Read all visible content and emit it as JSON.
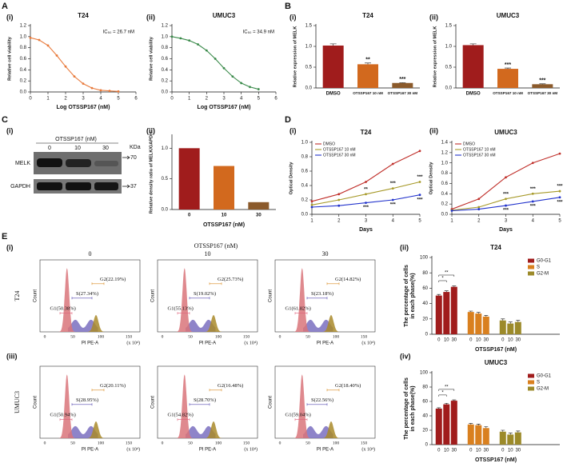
{
  "panel_labels": [
    "A",
    "B",
    "C",
    "D",
    "E"
  ],
  "sub_labels": [
    "(i)",
    "(ii)",
    "(iii)",
    "(iv)"
  ],
  "western_blot": {
    "treatment": "OTSSP167 (nM)",
    "lanes": [
      "0",
      "10",
      "30"
    ],
    "kda": "KDa",
    "proteins": [
      "MELK",
      "GAPDH"
    ],
    "markers": [
      "70",
      "37"
    ]
  },
  "flow_cytometry": {
    "title": "OTSSP167 (nM)",
    "columns": [
      "0",
      "10",
      "30"
    ],
    "x_label": "PI PE-A",
    "x_unit": "(x 10⁴)",
    "y_label": "Count",
    "x_ticks": [
      "0",
      "50",
      "100",
      "150"
    ],
    "rows": [
      {
        "label": "T24",
        "panels": [
          {
            "G1": "G1(50.38%)",
            "S": "S(27.34%)",
            "G2": "G2(22.19%)"
          },
          {
            "G1": "G1(55.13%)",
            "S": "S(19.02%)",
            "G2": "G2(25.73%)"
          },
          {
            "G1": "G1(61.82%)",
            "S": "S(23.18%)",
            "G2": "G2(14.82%)"
          }
        ]
      },
      {
        "label": "UMUC3",
        "panels": [
          {
            "G1": "G1(50.94%)",
            "S": "S(28.95%)",
            "G2": "G2(20.11%)"
          },
          {
            "G1": "G1(54.82%)",
            "S": "S(28.70%)",
            "G2": "G2(16.48%)"
          },
          {
            "G1": "G1(59.04%)",
            "S": "S(22.56%)",
            "G2": "G2(18.40%)"
          }
        ]
      }
    ]
  },
  "chart_data": [
    {
      "type": "line",
      "title": "T24",
      "annotation": "IC₅₀ = 26.7 nM",
      "x": [
        0,
        0.5,
        1,
        1.5,
        2,
        2.5,
        3,
        3.5,
        4,
        4.5,
        5
      ],
      "series": [
        {
          "color": "#e8793a",
          "values": [
            0.98,
            0.94,
            0.84,
            0.66,
            0.46,
            0.28,
            0.15,
            0.07,
            0.03,
            0.02,
            0.01
          ]
        }
      ],
      "x_label": "Log OTSSP167 (nM)",
      "y_label": "Relative cell viability",
      "xlim": [
        0,
        6
      ],
      "xticks": [
        0,
        1,
        2,
        3,
        4,
        5,
        6
      ],
      "ylim": [
        0,
        1.2
      ],
      "yticks": [
        {
          "value": 0,
          "label": "0.0"
        },
        0.2,
        0.4,
        0.6,
        0.8,
        {
          "value": 1,
          "label": "1.0"
        },
        1.2
      ]
    },
    {
      "type": "line",
      "title": "UMUC3",
      "annotation": "IC₅₀ = 34.9 nM",
      "x": [
        0,
        0.5,
        1,
        1.5,
        2,
        2.5,
        3,
        3.5,
        4,
        4.5,
        5
      ],
      "series": [
        {
          "color": "#3a8a4a",
          "values": [
            1.0,
            0.97,
            0.93,
            0.86,
            0.75,
            0.6,
            0.43,
            0.28,
            0.16,
            0.09,
            0.05
          ]
        }
      ],
      "x_label": "Log OTSSP167 (nM)",
      "y_label": "Relative cell viability",
      "xlim": [
        0,
        6
      ],
      "xticks": [
        0,
        1,
        2,
        3,
        4,
        5,
        6
      ],
      "ylim": [
        0,
        1.2
      ],
      "yticks": [
        {
          "value": 0,
          "label": "0.0"
        },
        0.2,
        0.4,
        0.6,
        0.8,
        {
          "value": 1,
          "label": "1.0"
        },
        1.2
      ]
    },
    {
      "type": "bar",
      "title": "T24",
      "categories": [
        "DMSO",
        "OTSSP167 10 nM",
        "OTSSP167 30 nM"
      ],
      "values": [
        1.02,
        0.57,
        0.12
      ],
      "errors": [
        0.04,
        0.03,
        0.01
      ],
      "colors": [
        "#a01c1c",
        "#d2691e",
        "#8b5a2b"
      ],
      "significance": [
        null,
        "**",
        "***"
      ],
      "y_label": "Relative expression of MELK",
      "ylim": [
        0,
        1.5
      ],
      "yticks": [
        {
          "value": 0,
          "label": "0.0"
        },
        0.5,
        {
          "value": 1,
          "label": "1.0"
        },
        1.5
      ]
    },
    {
      "type": "bar",
      "title": "UMUC3",
      "categories": [
        "DMSO",
        "OTSSP167 10 nM",
        "OTSSP167 30 nM"
      ],
      "values": [
        1.03,
        0.46,
        0.09
      ],
      "errors": [
        0.03,
        0.02,
        0.01
      ],
      "colors": [
        "#a01c1c",
        "#d2691e",
        "#8b5a2b"
      ],
      "significance": [
        null,
        "***",
        "***"
      ],
      "y_label": "Relative expression of MELK",
      "ylim": [
        0,
        1.5
      ],
      "yticks": [
        {
          "value": 0,
          "label": "0.0"
        },
        0.5,
        {
          "value": 1,
          "label": "1.0"
        },
        1.5
      ]
    },
    {
      "type": "bar",
      "categories": [
        "0",
        "10",
        "30"
      ],
      "values": [
        1.0,
        0.71,
        0.12
      ],
      "colors": [
        "#a01c1c",
        "#d2691e",
        "#8b5a2b"
      ],
      "x_label": "OTSSP167 (nM)",
      "y_label": "Relative density ratio of MELK/GAPDH",
      "ylim": [
        0,
        1.2
      ],
      "yticks": [
        {
          "value": 0,
          "label": "0.0"
        },
        0.5,
        {
          "value": 1,
          "label": "1.0"
        }
      ]
    },
    {
      "type": "line",
      "title": "T24",
      "x": [
        1,
        2,
        3,
        4,
        5
      ],
      "series": [
        {
          "name": "DMSO",
          "color": "#c0302b",
          "values": [
            0.18,
            0.28,
            0.45,
            0.7,
            0.88
          ]
        },
        {
          "name": "OTSSP167 10 nM",
          "color": "#a79a2a",
          "values": [
            0.13,
            0.2,
            0.28,
            0.36,
            0.45
          ],
          "significance": [
            null,
            null,
            "**",
            "***",
            "***"
          ]
        },
        {
          "name": "OTSSP167 30 nM",
          "color": "#2233cc",
          "values": [
            0.1,
            0.12,
            0.16,
            0.2,
            0.27
          ],
          "significance": [
            null,
            null,
            "***",
            "***",
            "***"
          ]
        }
      ],
      "x_label": "Days",
      "y_label": "Optical Density",
      "xlim": [
        1,
        5
      ],
      "xticks": [
        1,
        2,
        3,
        4,
        5
      ],
      "ylim": [
        0,
        1
      ],
      "yticks": [
        {
          "value": 0,
          "label": "0.0"
        },
        0.2,
        0.4,
        0.6,
        0.8,
        {
          "value": 1,
          "label": "1.0"
        }
      ]
    },
    {
      "type": "line",
      "title": "UMUC3",
      "x": [
        1,
        2,
        3,
        4,
        5
      ],
      "series": [
        {
          "name": "DMSO",
          "color": "#c0302b",
          "values": [
            0.1,
            0.3,
            0.72,
            1.0,
            1.18
          ]
        },
        {
          "name": "OTSSP167 10 nM",
          "color": "#a79a2a",
          "values": [
            0.08,
            0.14,
            0.3,
            0.4,
            0.45
          ],
          "significance": [
            null,
            null,
            "***",
            "***",
            "***"
          ]
        },
        {
          "name": "OTSSP167 30 nM",
          "color": "#2233cc",
          "values": [
            0.07,
            0.1,
            0.17,
            0.25,
            0.33
          ],
          "significance": [
            null,
            null,
            "***",
            "***",
            "***"
          ]
        }
      ],
      "x_label": "Days",
      "y_label": "Optical Density",
      "xlim": [
        1,
        5
      ],
      "xticks": [
        1,
        2,
        3,
        4,
        5
      ],
      "ylim": [
        0,
        1.4
      ],
      "yticks": [
        {
          "value": 0,
          "label": "0.0"
        },
        0.2,
        0.4,
        0.6,
        0.8,
        {
          "value": 1,
          "label": "1.0"
        },
        1.2,
        1.4
      ]
    },
    {
      "type": "grouped_bar",
      "title": "T24",
      "categories": [
        "0",
        "10",
        "30"
      ],
      "series": [
        {
          "name": "G0-G1",
          "color": "#a01c1c",
          "values": [
            50.4,
            55.1,
            61.8
          ],
          "errors": [
            1.5,
            1.5,
            1.2
          ],
          "significance": [
            null,
            "*",
            "**"
          ]
        },
        {
          "name": "S",
          "color": "#d9801f",
          "values": [
            29,
            27,
            23
          ],
          "errors": [
            1.2,
            1.5,
            1.5
          ]
        },
        {
          "name": "G2-M",
          "color": "#9c8a2a",
          "values": [
            18,
            14,
            16
          ],
          "errors": [
            2,
            2,
            2
          ]
        }
      ],
      "x_label": "OTSSP167 (nM)",
      "y_label": [
        "The percentage of cells",
        "in each phase(%)"
      ],
      "ylim": [
        0,
        100
      ],
      "yticks": [
        0,
        20,
        40,
        60,
        80,
        100
      ]
    },
    {
      "type": "grouped_bar",
      "title": "UMUC3",
      "categories": [
        "0",
        "10",
        "30"
      ],
      "series": [
        {
          "name": "G0-G1",
          "color": "#a01c1c",
          "values": [
            50,
            56,
            61
          ],
          "errors": [
            1.2,
            1.5,
            1.2
          ],
          "significance": [
            null,
            "*",
            "**"
          ]
        },
        {
          "name": "S",
          "color": "#d9801f",
          "values": [
            28,
            27,
            23
          ],
          "errors": [
            1.5,
            1.5,
            2
          ]
        },
        {
          "name": "G2-M",
          "color": "#9c8a2a",
          "values": [
            18,
            14,
            17
          ],
          "errors": [
            2,
            2,
            2
          ]
        }
      ],
      "x_label": "OTSSP167 (nM)",
      "y_label": [
        "The percentage of cells",
        "in each phase(%)"
      ],
      "ylim": [
        0,
        100
      ],
      "yticks": [
        0,
        20,
        40,
        60,
        80,
        100
      ]
    }
  ]
}
